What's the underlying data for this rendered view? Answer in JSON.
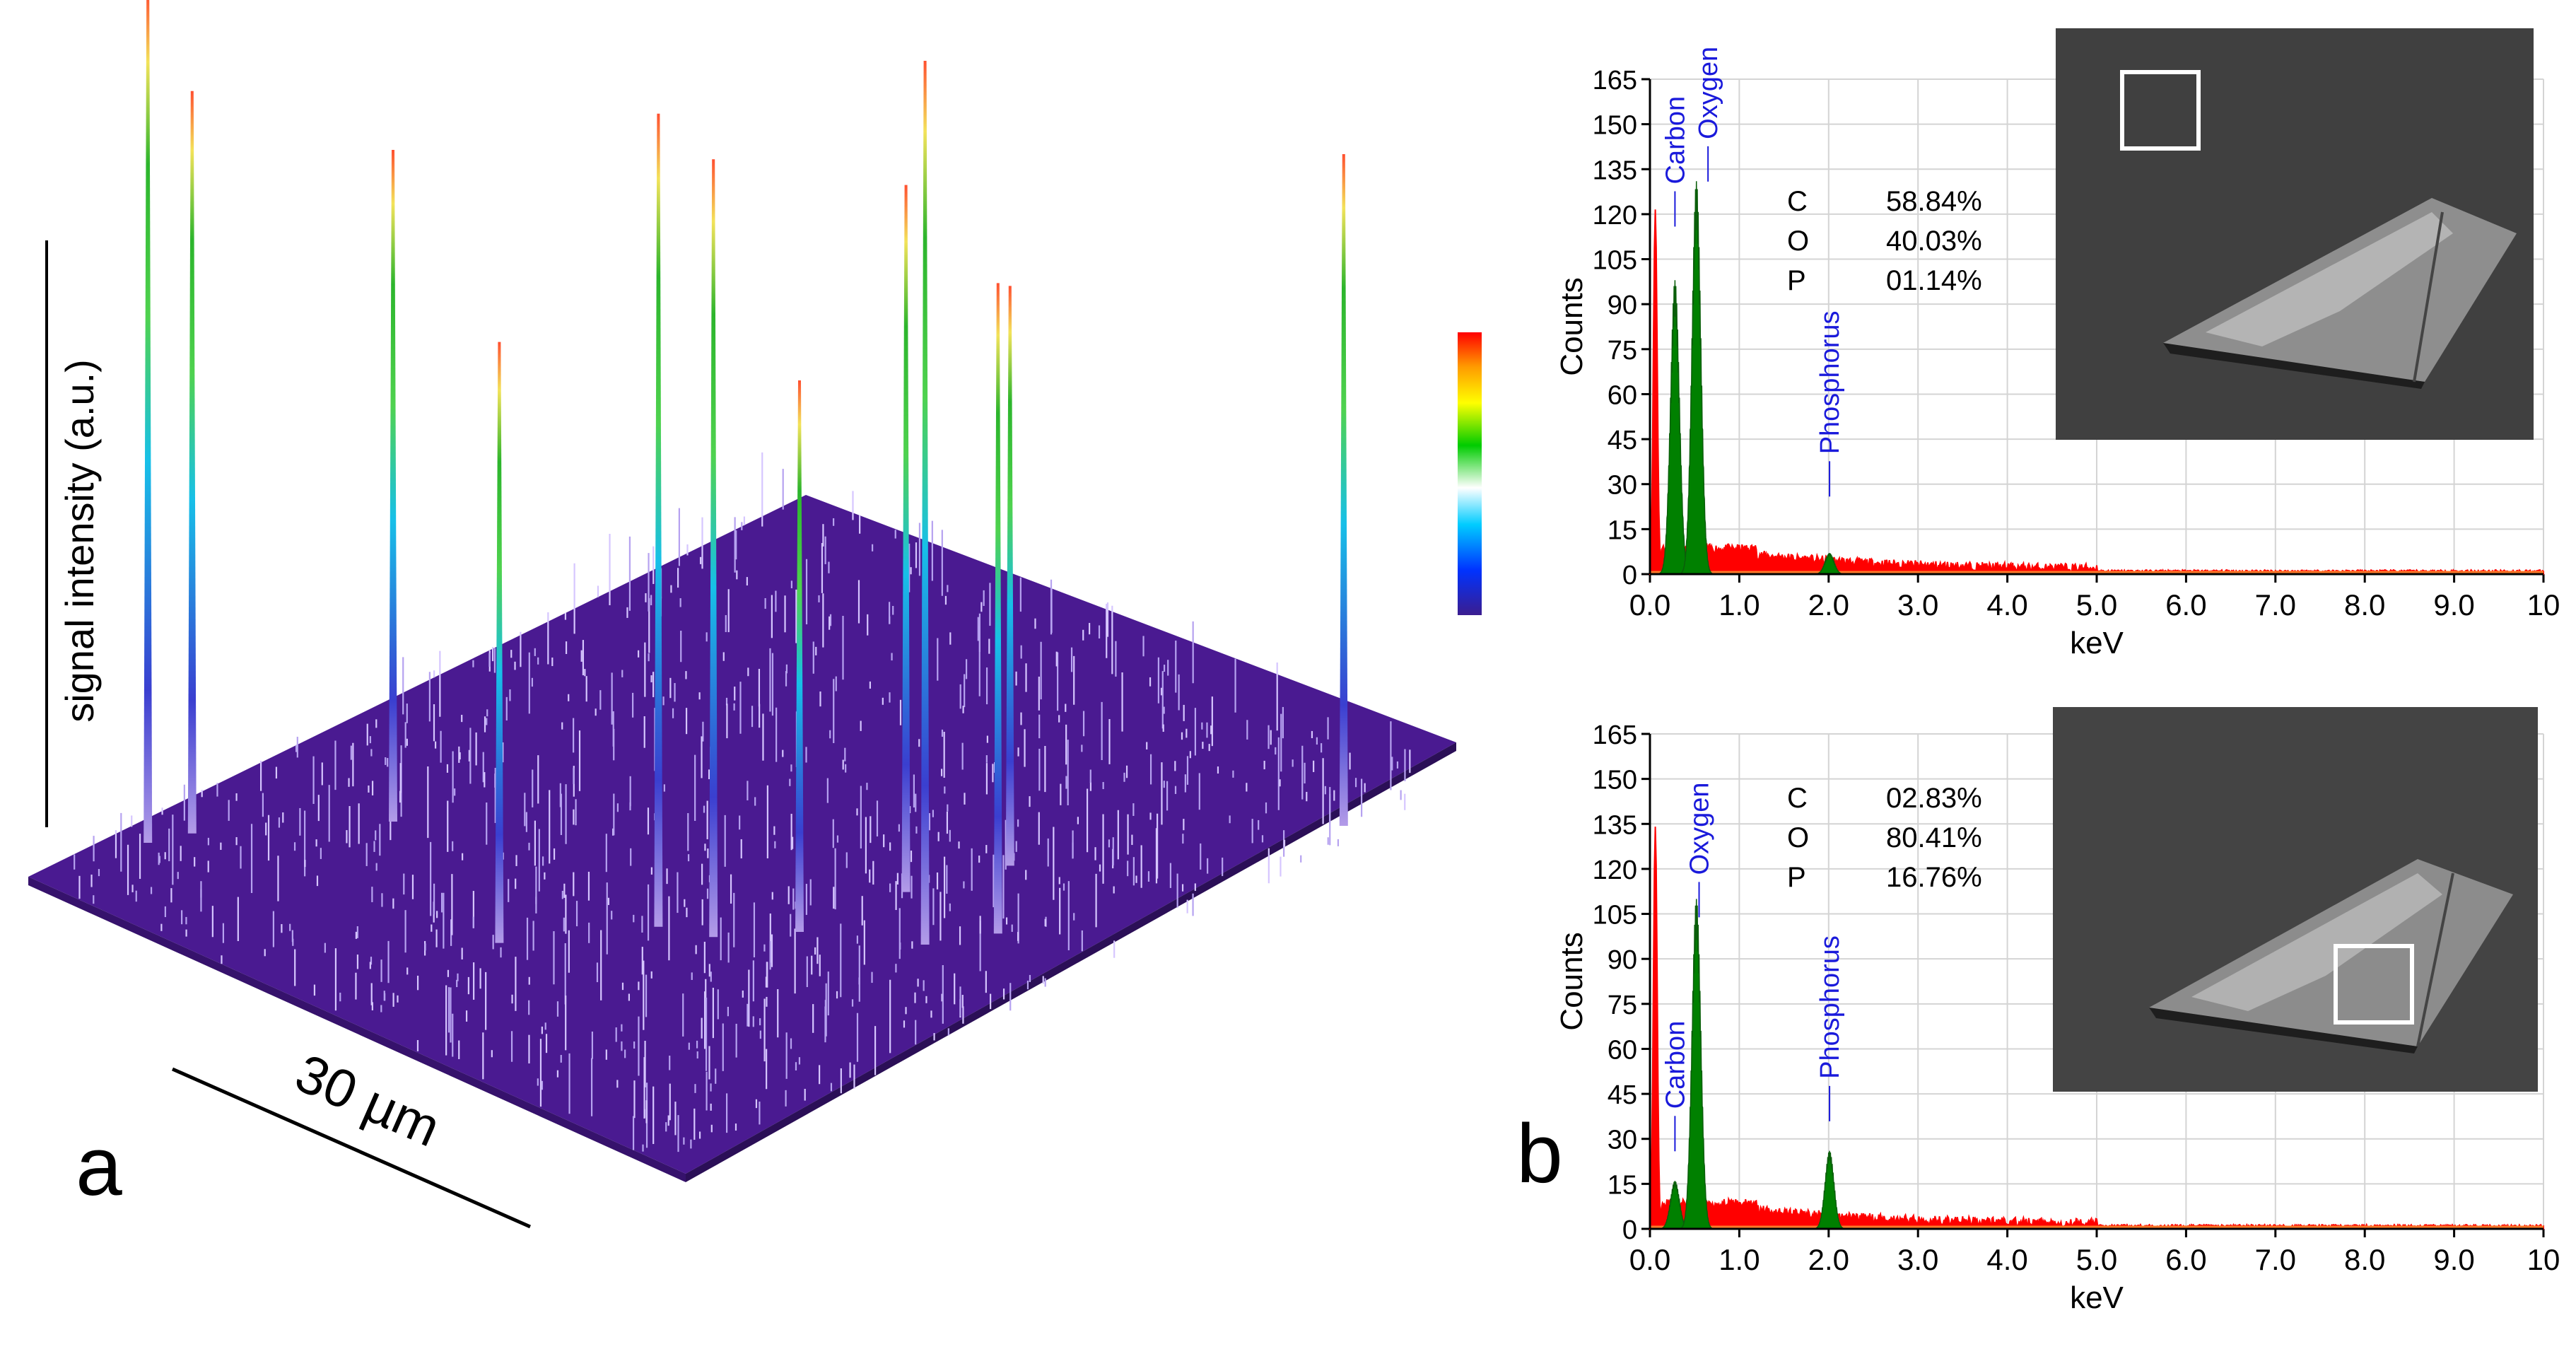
{
  "panel_a": {
    "label": "a",
    "y_label": "signal intensity (a.u.)",
    "scale_label": "30 µm",
    "colorbar": [
      "#ff0000",
      "#ff9900",
      "#ffff00",
      "#00cc00",
      "#ffffff",
      "#00ccff",
      "#0033ff",
      "#3b1d8f"
    ]
  },
  "panel_b": {
    "label": "b"
  },
  "chart_data": [
    {
      "type": "surface3d",
      "title": "",
      "zlabel": "signal intensity (a.u.)",
      "scale_bar": "30 µm",
      "peaks": [
        {
          "i": 0.04,
          "j": 0.12,
          "h": 1.2
        },
        {
          "i": 0.06,
          "j": 0.16,
          "h": 1.05
        },
        {
          "i": 0.2,
          "j": 0.3,
          "h": 0.95
        },
        {
          "i": 0.48,
          "j": 0.2,
          "h": 0.85
        },
        {
          "i": 0.58,
          "j": 0.32,
          "h": 1.15
        },
        {
          "i": 0.64,
          "j": 0.34,
          "h": 1.1
        },
        {
          "i": 0.7,
          "j": 0.4,
          "h": 0.78
        },
        {
          "i": 0.72,
          "j": 0.52,
          "h": 1.0
        },
        {
          "i": 0.76,
          "j": 0.62,
          "h": 0.82
        },
        {
          "i": 0.82,
          "j": 0.46,
          "h": 1.25
        },
        {
          "i": 0.86,
          "j": 0.52,
          "h": 0.92
        },
        {
          "i": 0.96,
          "j": 0.88,
          "h": 0.95
        }
      ]
    },
    {
      "type": "area",
      "xlabel": "keV",
      "ylabel": "Counts",
      "xlim": [
        0,
        10
      ],
      "ylim": [
        0,
        165
      ],
      "xticks": [
        "0.0",
        "1.0",
        "2.0",
        "3.0",
        "4.0",
        "5.0",
        "6.0",
        "7.0",
        "8.0",
        "9.0",
        "10"
      ],
      "yticks": [
        "0",
        "15",
        "30",
        "45",
        "60",
        "75",
        "90",
        "105",
        "120",
        "135",
        "150",
        "165"
      ],
      "series": [
        {
          "name": "Carbon",
          "center": 0.28,
          "height": 98,
          "color": "#008000"
        },
        {
          "name": "Oxygen",
          "center": 0.52,
          "height": 131,
          "color": "#008000"
        },
        {
          "name": "Phosphorus",
          "center": 2.01,
          "height": 7,
          "color": "#008000"
        }
      ],
      "background": {
        "color": "#ff0000",
        "zero_peak": 120,
        "level_1keV": 5
      },
      "peak_labels": [
        {
          "text": "Carbon",
          "x": 0.28,
          "y": 130
        },
        {
          "text": "Oxygen",
          "x": 0.65,
          "y": 145
        },
        {
          "text": "Phosphorus",
          "x": 2.01,
          "y": 40
        }
      ],
      "composition": [
        {
          "element": "C",
          "value": "58.84%"
        },
        {
          "element": "O",
          "value": "40.03%"
        },
        {
          "element": "P",
          "value": "01.14%"
        }
      ]
    },
    {
      "type": "area",
      "xlabel": "keV",
      "ylabel": "Counts",
      "xlim": [
        0,
        10
      ],
      "ylim": [
        0,
        165
      ],
      "xticks": [
        "0.0",
        "1.0",
        "2.0",
        "3.0",
        "4.0",
        "5.0",
        "6.0",
        "7.0",
        "8.0",
        "9.0",
        "10"
      ],
      "yticks": [
        "0",
        "15",
        "30",
        "45",
        "60",
        "75",
        "90",
        "105",
        "120",
        "135",
        "150",
        "165"
      ],
      "series": [
        {
          "name": "Carbon",
          "center": 0.28,
          "height": 16,
          "color": "#008000"
        },
        {
          "name": "Oxygen",
          "center": 0.52,
          "height": 110,
          "color": "#008000"
        },
        {
          "name": "Phosphorus",
          "center": 2.01,
          "height": 26,
          "color": "#008000"
        }
      ],
      "background": {
        "color": "#ff0000",
        "zero_peak": 133,
        "level_1keV": 5
      },
      "peak_labels": [
        {
          "text": "Carbon",
          "x": 0.28,
          "y": 40
        },
        {
          "text": "Oxygen",
          "x": 0.55,
          "y": 118
        },
        {
          "text": "Phosphorus",
          "x": 2.01,
          "y": 50
        }
      ],
      "composition": [
        {
          "element": "C",
          "value": "02.83%"
        },
        {
          "element": "O",
          "value": "80.41%"
        },
        {
          "element": "P",
          "value": "16.76%"
        }
      ]
    }
  ]
}
